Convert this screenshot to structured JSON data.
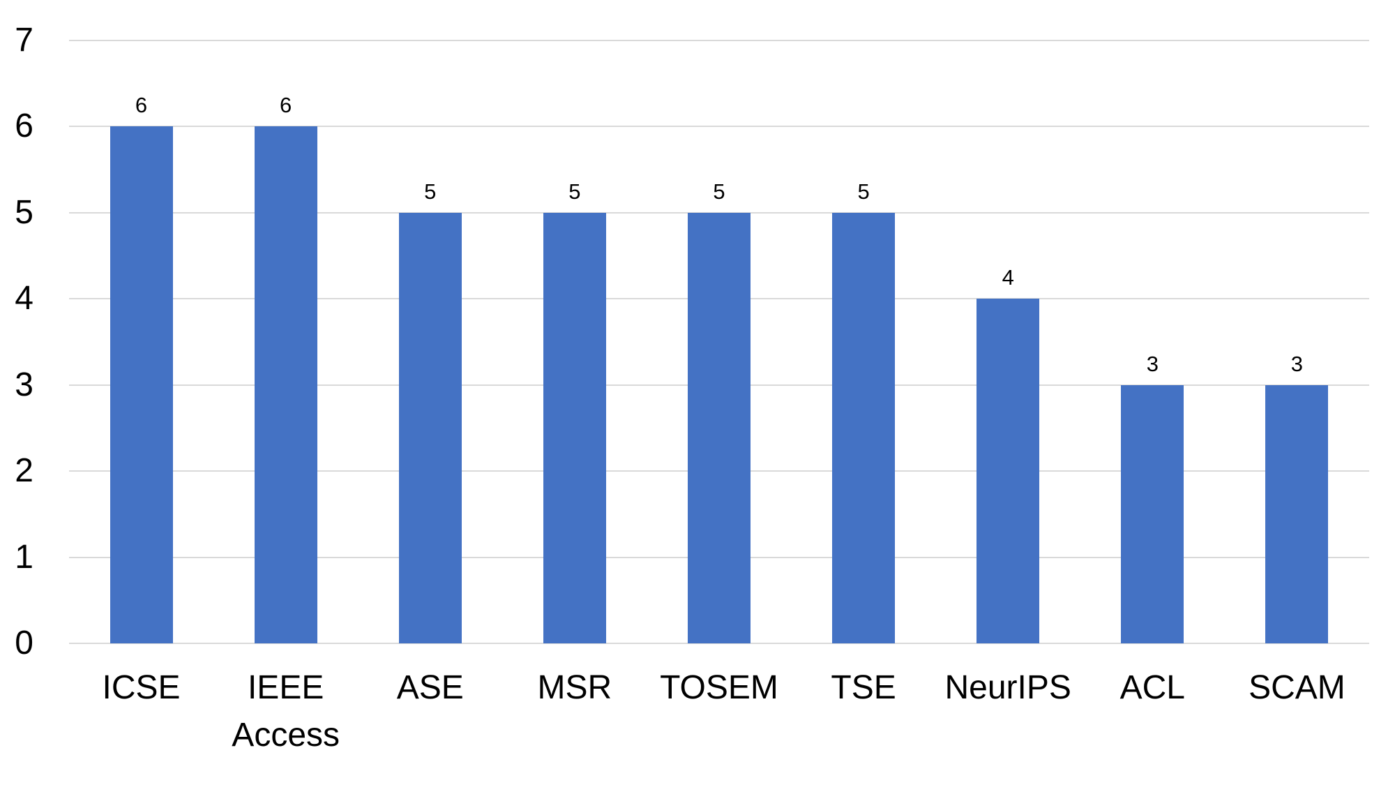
{
  "chart_data": {
    "type": "bar",
    "title": "",
    "xlabel": "",
    "ylabel": "",
    "categories": [
      "ICSE",
      "IEEE Access",
      "ASE",
      "MSR",
      "TOSEM",
      "TSE",
      "NeurIPS",
      "ACL",
      "SCAM"
    ],
    "values": [
      6,
      6,
      5,
      5,
      5,
      5,
      4,
      3,
      3
    ],
    "data_labels": [
      "6",
      "6",
      "5",
      "5",
      "5",
      "5",
      "4",
      "3",
      "3"
    ],
    "ylim": [
      0,
      7
    ],
    "yticks": [
      "0",
      "1",
      "2",
      "3",
      "4",
      "5",
      "6",
      "7"
    ],
    "grid": true,
    "legend": false,
    "colors": {
      "bar": "#4472C4",
      "gridline": "#D9D9D9",
      "text": "#000000",
      "background": "#FFFFFF"
    }
  }
}
